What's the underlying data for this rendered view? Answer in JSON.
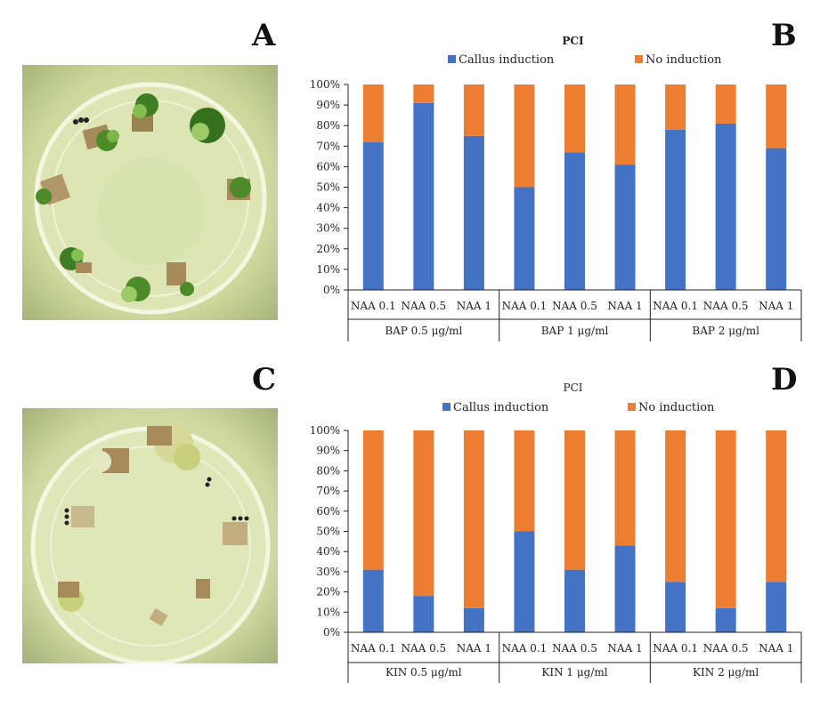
{
  "panels": {
    "a": "A",
    "b": "B",
    "c": "C",
    "d": "D"
  },
  "chart_data": [
    {
      "type": "bar",
      "stacked": true,
      "title": "PCI",
      "legend_placement": "top",
      "ylim": [
        0,
        100
      ],
      "yticks": [
        "0%",
        "10%",
        "20%",
        "30%",
        "40%",
        "50%",
        "60%",
        "70%",
        "80%",
        "90%",
        "100%"
      ],
      "categories": [
        "NAA 0.1",
        "NAA 0.5",
        "NAA 1",
        "NAA 0.1",
        "NAA 0.5",
        "NAA 1",
        "NAA 0.1",
        "NAA 0.5",
        "NAA 1"
      ],
      "groups": [
        "BAP 0.5 μg/ml",
        "BAP 1 μg/ml",
        "BAP 2 μg/ml"
      ],
      "series": [
        {
          "name": "Callus induction",
          "color": "#4472C4",
          "values": [
            72,
            91,
            75,
            50,
            67,
            61,
            78,
            81,
            69
          ]
        },
        {
          "name": "No induction",
          "color": "#ED7D31",
          "values": [
            28,
            9,
            25,
            50,
            33,
            39,
            22,
            19,
            31
          ]
        }
      ]
    },
    {
      "type": "bar",
      "stacked": true,
      "title": "PCI",
      "legend_placement": "top",
      "ylim": [
        0,
        100
      ],
      "yticks": [
        "0%",
        "10%",
        "20%",
        "30%",
        "40%",
        "50%",
        "60%",
        "70%",
        "80%",
        "90%",
        "100%"
      ],
      "categories": [
        "NAA 0.1",
        "NAA 0.5",
        "NAA 1",
        "NAA 0.1",
        "NAA 0.5",
        "NAA 1",
        "NAA 0.1",
        "NAA 0.5",
        "NAA 1"
      ],
      "groups": [
        "KIN 0.5 μg/ml",
        "KIN 1 μg/ml",
        "KIN 2 μg/ml"
      ],
      "series": [
        {
          "name": "Callus induction",
          "color": "#4472C4",
          "values": [
            31,
            18,
            12,
            50,
            31,
            43,
            25,
            12,
            25
          ]
        },
        {
          "name": "No induction",
          "color": "#ED7D31",
          "values": [
            69,
            82,
            88,
            50,
            69,
            57,
            75,
            88,
            75
          ]
        }
      ]
    }
  ]
}
